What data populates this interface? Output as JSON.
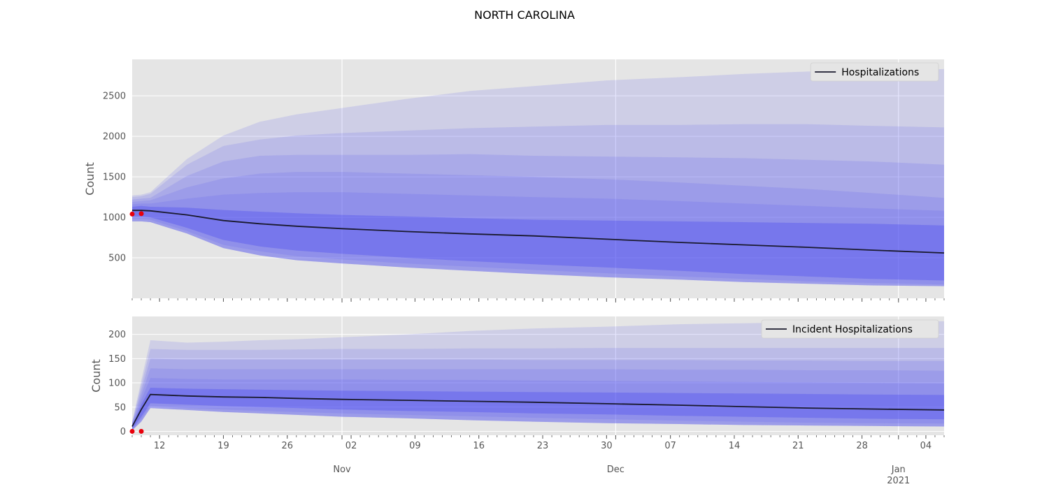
{
  "figure": {
    "title": "NORTH CAROLINA"
  },
  "colors": {
    "axes_background": "#e5e5e5",
    "grid": "#ffffff",
    "band": "#4a4af0",
    "median_line": "#1a1a2e",
    "observed_points": "#e8000b",
    "tick_text": "#555555",
    "legend_background": "#e5e5e5"
  },
  "chart_data": [
    {
      "type": "area",
      "title": "",
      "ylabel": "Count",
      "legend": {
        "label": "Hospitalizations",
        "placement": "top-right"
      },
      "grid": true,
      "xlim": [
        "2020-10-09",
        "2021-01-06"
      ],
      "ylim": [
        0,
        2950
      ],
      "yticks": [
        500,
        1000,
        1500,
        2000,
        2500
      ],
      "x_day_ticks": [
        "12",
        "19",
        "26",
        "02",
        "09",
        "16",
        "23",
        "30",
        "07",
        "14",
        "21",
        "28",
        "04"
      ],
      "x_day_tick_dates": [
        "2020-10-12",
        "2020-10-19",
        "2020-10-26",
        "2020-11-02",
        "2020-11-09",
        "2020-11-16",
        "2020-11-23",
        "2020-11-30",
        "2020-12-07",
        "2020-12-14",
        "2020-12-21",
        "2020-12-28",
        "2021-01-04"
      ],
      "month_labels": [
        {
          "label": "Nov",
          "date": "2020-11-01"
        },
        {
          "label": "Dec",
          "date": "2020-12-01"
        },
        {
          "label": "Jan\n2021",
          "date": "2021-01-01"
        }
      ],
      "x": [
        "2020-10-09",
        "2020-10-10",
        "2020-10-11",
        "2020-10-15",
        "2020-10-19",
        "2020-10-23",
        "2020-10-27",
        "2020-11-01",
        "2020-11-08",
        "2020-11-15",
        "2020-11-22",
        "2020-11-30",
        "2020-12-08",
        "2020-12-15",
        "2020-12-22",
        "2020-12-29",
        "2021-01-06"
      ],
      "median": [
        1085,
        1085,
        1080,
        1030,
        960,
        920,
        890,
        860,
        825,
        795,
        770,
        730,
        690,
        660,
        630,
        595,
        560
      ],
      "bands_lower": [
        [
          1010,
          1010,
          1000,
          870,
          720,
          640,
          590,
          550,
          500,
          460,
          420,
          380,
          340,
          300,
          270,
          240,
          220
        ],
        [
          980,
          980,
          970,
          830,
          660,
          580,
          520,
          480,
          430,
          390,
          350,
          310,
          270,
          240,
          210,
          190,
          170
        ],
        [
          950,
          950,
          940,
          800,
          620,
          530,
          470,
          430,
          380,
          340,
          300,
          260,
          230,
          200,
          180,
          160,
          150
        ]
      ],
      "bands_upper": [
        [
          1130,
          1140,
          1130,
          1120,
          1090,
          1070,
          1050,
          1030,
          1010,
          990,
          970,
          960,
          950,
          940,
          930,
          920,
          900
        ],
        [
          1160,
          1170,
          1170,
          1230,
          1280,
          1300,
          1310,
          1310,
          1290,
          1270,
          1250,
          1230,
          1200,
          1170,
          1140,
          1110,
          1080
        ],
        [
          1190,
          1200,
          1210,
          1370,
          1480,
          1540,
          1560,
          1560,
          1540,
          1520,
          1500,
          1470,
          1430,
          1390,
          1350,
          1300,
          1240
        ],
        [
          1220,
          1230,
          1240,
          1510,
          1690,
          1760,
          1770,
          1770,
          1770,
          1780,
          1760,
          1750,
          1740,
          1730,
          1710,
          1690,
          1650
        ],
        [
          1250,
          1260,
          1290,
          1650,
          1880,
          1960,
          2010,
          2040,
          2070,
          2100,
          2120,
          2140,
          2140,
          2150,
          2150,
          2130,
          2110
        ],
        [
          1270,
          1280,
          1310,
          1720,
          2010,
          2180,
          2270,
          2350,
          2460,
          2560,
          2620,
          2690,
          2730,
          2770,
          2800,
          2810,
          2830
        ]
      ],
      "observed": [
        {
          "x": "2020-10-09",
          "y": 1040
        },
        {
          "x": "2020-10-10",
          "y": 1045
        }
      ]
    },
    {
      "type": "area",
      "title": "",
      "ylabel": "Count",
      "legend": {
        "label": "Incident Hospitalizations",
        "placement": "top-right"
      },
      "grid": true,
      "xlim": [
        "2020-10-09",
        "2021-01-06"
      ],
      "ylim": [
        -8,
        237
      ],
      "yticks": [
        0,
        50,
        100,
        150,
        200
      ],
      "x": [
        "2020-10-09",
        "2020-10-10",
        "2020-10-11",
        "2020-10-15",
        "2020-10-19",
        "2020-10-23",
        "2020-10-27",
        "2020-11-01",
        "2020-11-08",
        "2020-11-15",
        "2020-11-22",
        "2020-11-30",
        "2020-12-08",
        "2020-12-15",
        "2020-12-22",
        "2020-12-29",
        "2021-01-06"
      ],
      "median": [
        10,
        45,
        76,
        73,
        71,
        70,
        68,
        66,
        64,
        62,
        60,
        57,
        54,
        51,
        48,
        46,
        44
      ],
      "bands_lower": [
        [
          5,
          30,
          58,
          55,
          52,
          50,
          48,
          45,
          42,
          40,
          37,
          35,
          32,
          30,
          28,
          26,
          25
        ],
        [
          3,
          25,
          52,
          48,
          45,
          42,
          40,
          37,
          34,
          31,
          28,
          25,
          22,
          20,
          18,
          17,
          16
        ],
        [
          2,
          20,
          48,
          44,
          40,
          37,
          34,
          30,
          27,
          23,
          20,
          17,
          15,
          13,
          12,
          11,
          10
        ]
      ],
      "bands_upper": [
        [
          12,
          55,
          90,
          88,
          87,
          86,
          85,
          84,
          83,
          82,
          81,
          80,
          79,
          78,
          77,
          76,
          75
        ],
        [
          14,
          65,
          110,
          108,
          107,
          107,
          107,
          107,
          106,
          106,
          105,
          104,
          103,
          102,
          101,
          100,
          99
        ],
        [
          16,
          75,
          130,
          128,
          128,
          128,
          128,
          128,
          128,
          128,
          128,
          128,
          127,
          127,
          126,
          126,
          125
        ],
        [
          18,
          85,
          150,
          148,
          148,
          148,
          148,
          148,
          148,
          148,
          147,
          147,
          147,
          146,
          146,
          145,
          145
        ],
        [
          19,
          95,
          170,
          168,
          168,
          168,
          169,
          170,
          170,
          171,
          171,
          172,
          172,
          172,
          172,
          172,
          172
        ],
        [
          20,
          105,
          188,
          183,
          185,
          188,
          190,
          194,
          200,
          207,
          212,
          216,
          221,
          223,
          225,
          226,
          227
        ]
      ],
      "observed": [
        {
          "x": "2020-10-09",
          "y": 0
        },
        {
          "x": "2020-10-10",
          "y": 0
        }
      ]
    }
  ]
}
